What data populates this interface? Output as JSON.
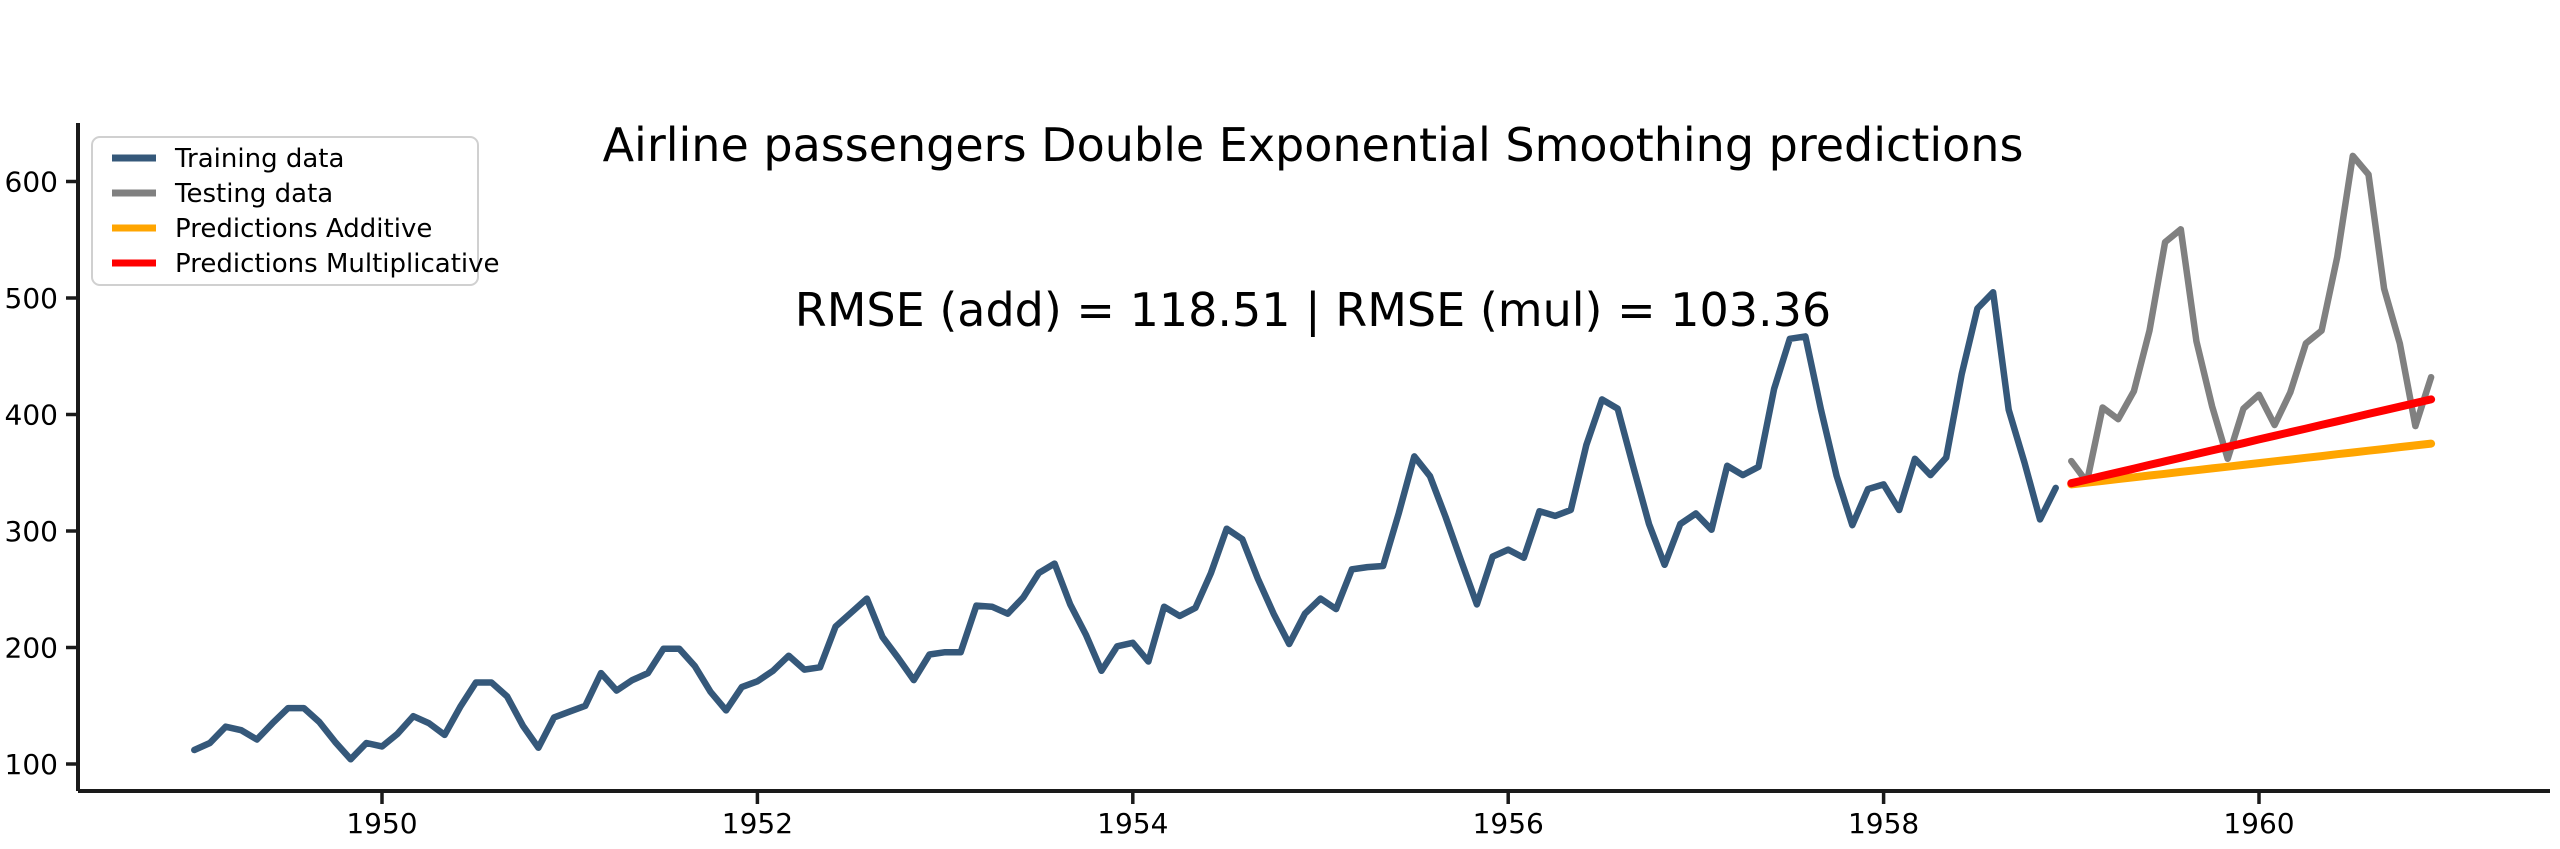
{
  "chart_data": {
    "type": "line",
    "title": "Airline passengers Double Exponential Smoothing predictions",
    "subtitle": "RMSE (add) = 118.51 | RMSE (mul) = 103.36",
    "xlabel": "",
    "ylabel": "",
    "grid": false,
    "legend_position": "upper left",
    "x_axis": {
      "ticks": [
        1950,
        1952,
        1954,
        1956,
        1958,
        1960
      ],
      "range": [
        1948.35,
        1961.55
      ],
      "unit": "year"
    },
    "y_axis": {
      "ticks": [
        100,
        200,
        300,
        400,
        500,
        600
      ],
      "range": [
        77,
        650
      ]
    },
    "frequency": "monthly",
    "series": [
      {
        "name": "Training data",
        "color": "#35587a",
        "lw": 6.5,
        "start_year": 1949,
        "start_month": 1,
        "values": [
          112,
          118,
          132,
          129,
          121,
          135,
          148,
          148,
          136,
          119,
          104,
          118,
          115,
          126,
          141,
          135,
          125,
          149,
          170,
          170,
          158,
          133,
          114,
          140,
          145,
          150,
          178,
          163,
          172,
          178,
          199,
          199,
          184,
          162,
          146,
          166,
          171,
          180,
          193,
          181,
          183,
          218,
          230,
          242,
          209,
          191,
          172,
          194,
          196,
          196,
          236,
          235,
          229,
          243,
          264,
          272,
          237,
          211,
          180,
          201,
          204,
          188,
          235,
          227,
          234,
          264,
          302,
          293,
          259,
          229,
          203,
          229,
          242,
          233,
          267,
          269,
          270,
          315,
          364,
          347,
          312,
          274,
          237,
          278,
          284,
          277,
          317,
          313,
          318,
          374,
          413,
          405,
          355,
          306,
          271,
          306,
          315,
          301,
          356,
          348,
          355,
          422,
          465,
          467,
          404,
          347,
          305,
          336,
          340,
          318,
          362,
          348,
          363,
          435,
          491,
          505,
          404,
          359,
          310,
          337
        ]
      },
      {
        "name": "Testing data",
        "color": "#808080",
        "lw": 6.5,
        "start_year": 1959,
        "start_month": 1,
        "values": [
          360,
          342,
          406,
          396,
          420,
          472,
          548,
          559,
          463,
          407,
          362,
          405,
          417,
          391,
          419,
          461,
          472,
          535,
          622,
          606,
          508,
          461,
          390,
          432
        ]
      },
      {
        "name": "Predictions Additive",
        "color": "#ffa500",
        "lw": 8,
        "start_year": 1959,
        "start_month": 1,
        "values": [
          340.0,
          341.5,
          343.0,
          344.6,
          346.1,
          347.6,
          349.1,
          350.7,
          352.2,
          353.7,
          355.2,
          356.7,
          358.3,
          359.8,
          361.3,
          362.8,
          364.3,
          365.9,
          367.4,
          368.9,
          370.4,
          372.0,
          373.5,
          375.0
        ]
      },
      {
        "name": "Predictions Multiplicative",
        "color": "#ff0000",
        "lw": 8,
        "start_year": 1959,
        "start_month": 1,
        "values": [
          341.0,
          344.1,
          347.3,
          350.4,
          353.5,
          356.7,
          359.8,
          362.9,
          366.1,
          369.2,
          372.3,
          375.4,
          378.6,
          381.7,
          384.8,
          387.9,
          391.1,
          394.2,
          397.3,
          400.5,
          403.6,
          406.7,
          409.9,
          413.0
        ]
      }
    ]
  },
  "legend": {
    "items": [
      {
        "label": "Training data",
        "color": "#35587a"
      },
      {
        "label": "Testing data",
        "color": "#808080"
      },
      {
        "label": "Predictions Additive",
        "color": "#ffa500"
      },
      {
        "label": "Predictions Multiplicative",
        "color": "#ff0000"
      }
    ]
  }
}
